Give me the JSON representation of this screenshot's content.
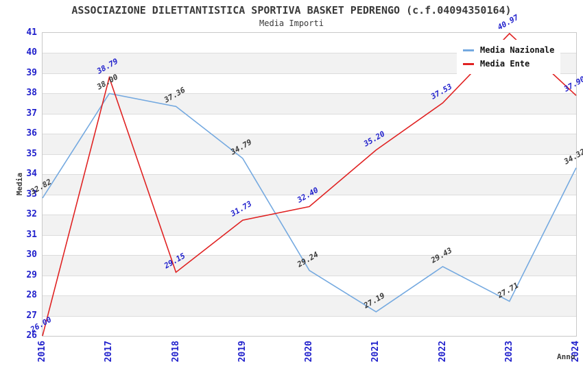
{
  "header": {
    "title": "ASSOCIAZIONE DILETTANTISTICA SPORTIVA BASKET PEDRENGO (c.f.04094350164)",
    "subtitle": "Media Importi"
  },
  "chart_data": {
    "type": "line",
    "title": "ASSOCIAZIONE DILETTANTISTICA SPORTIVA BASKET PEDRENGO (c.f.04094350164)",
    "subtitle": "Media Importi",
    "xlabel": "Anno",
    "ylabel": "Media",
    "categories": [
      "2016",
      "2017",
      "2018",
      "2019",
      "2020",
      "2021",
      "2022",
      "2023",
      "2024"
    ],
    "series": [
      {
        "name": "Media Nazionale",
        "color": "#74a9e0",
        "label_color": "#3a3a3a",
        "values": [
          32.82,
          38.0,
          37.36,
          34.79,
          29.24,
          27.19,
          29.43,
          27.71,
          34.32
        ]
      },
      {
        "name": "Media Ente",
        "color": "#e02222",
        "label_color": "#2121cc",
        "values": [
          26.0,
          38.79,
          29.15,
          31.73,
          32.4,
          35.2,
          37.53,
          40.97,
          37.9
        ]
      }
    ],
    "ylim": [
      26,
      41
    ],
    "ytick_step": 1,
    "grid": true,
    "alternating_bands": true,
    "legend_position": "top-right",
    "value_label_format": "2-decimals",
    "colors": {
      "tick_label": "#2121cc",
      "band": "#f2f2f2",
      "gridline": "#dcdcdc",
      "plot_border": "#c8c8c8",
      "title_text": "#3a3a3a",
      "legend_bg": "#ffffff"
    }
  }
}
